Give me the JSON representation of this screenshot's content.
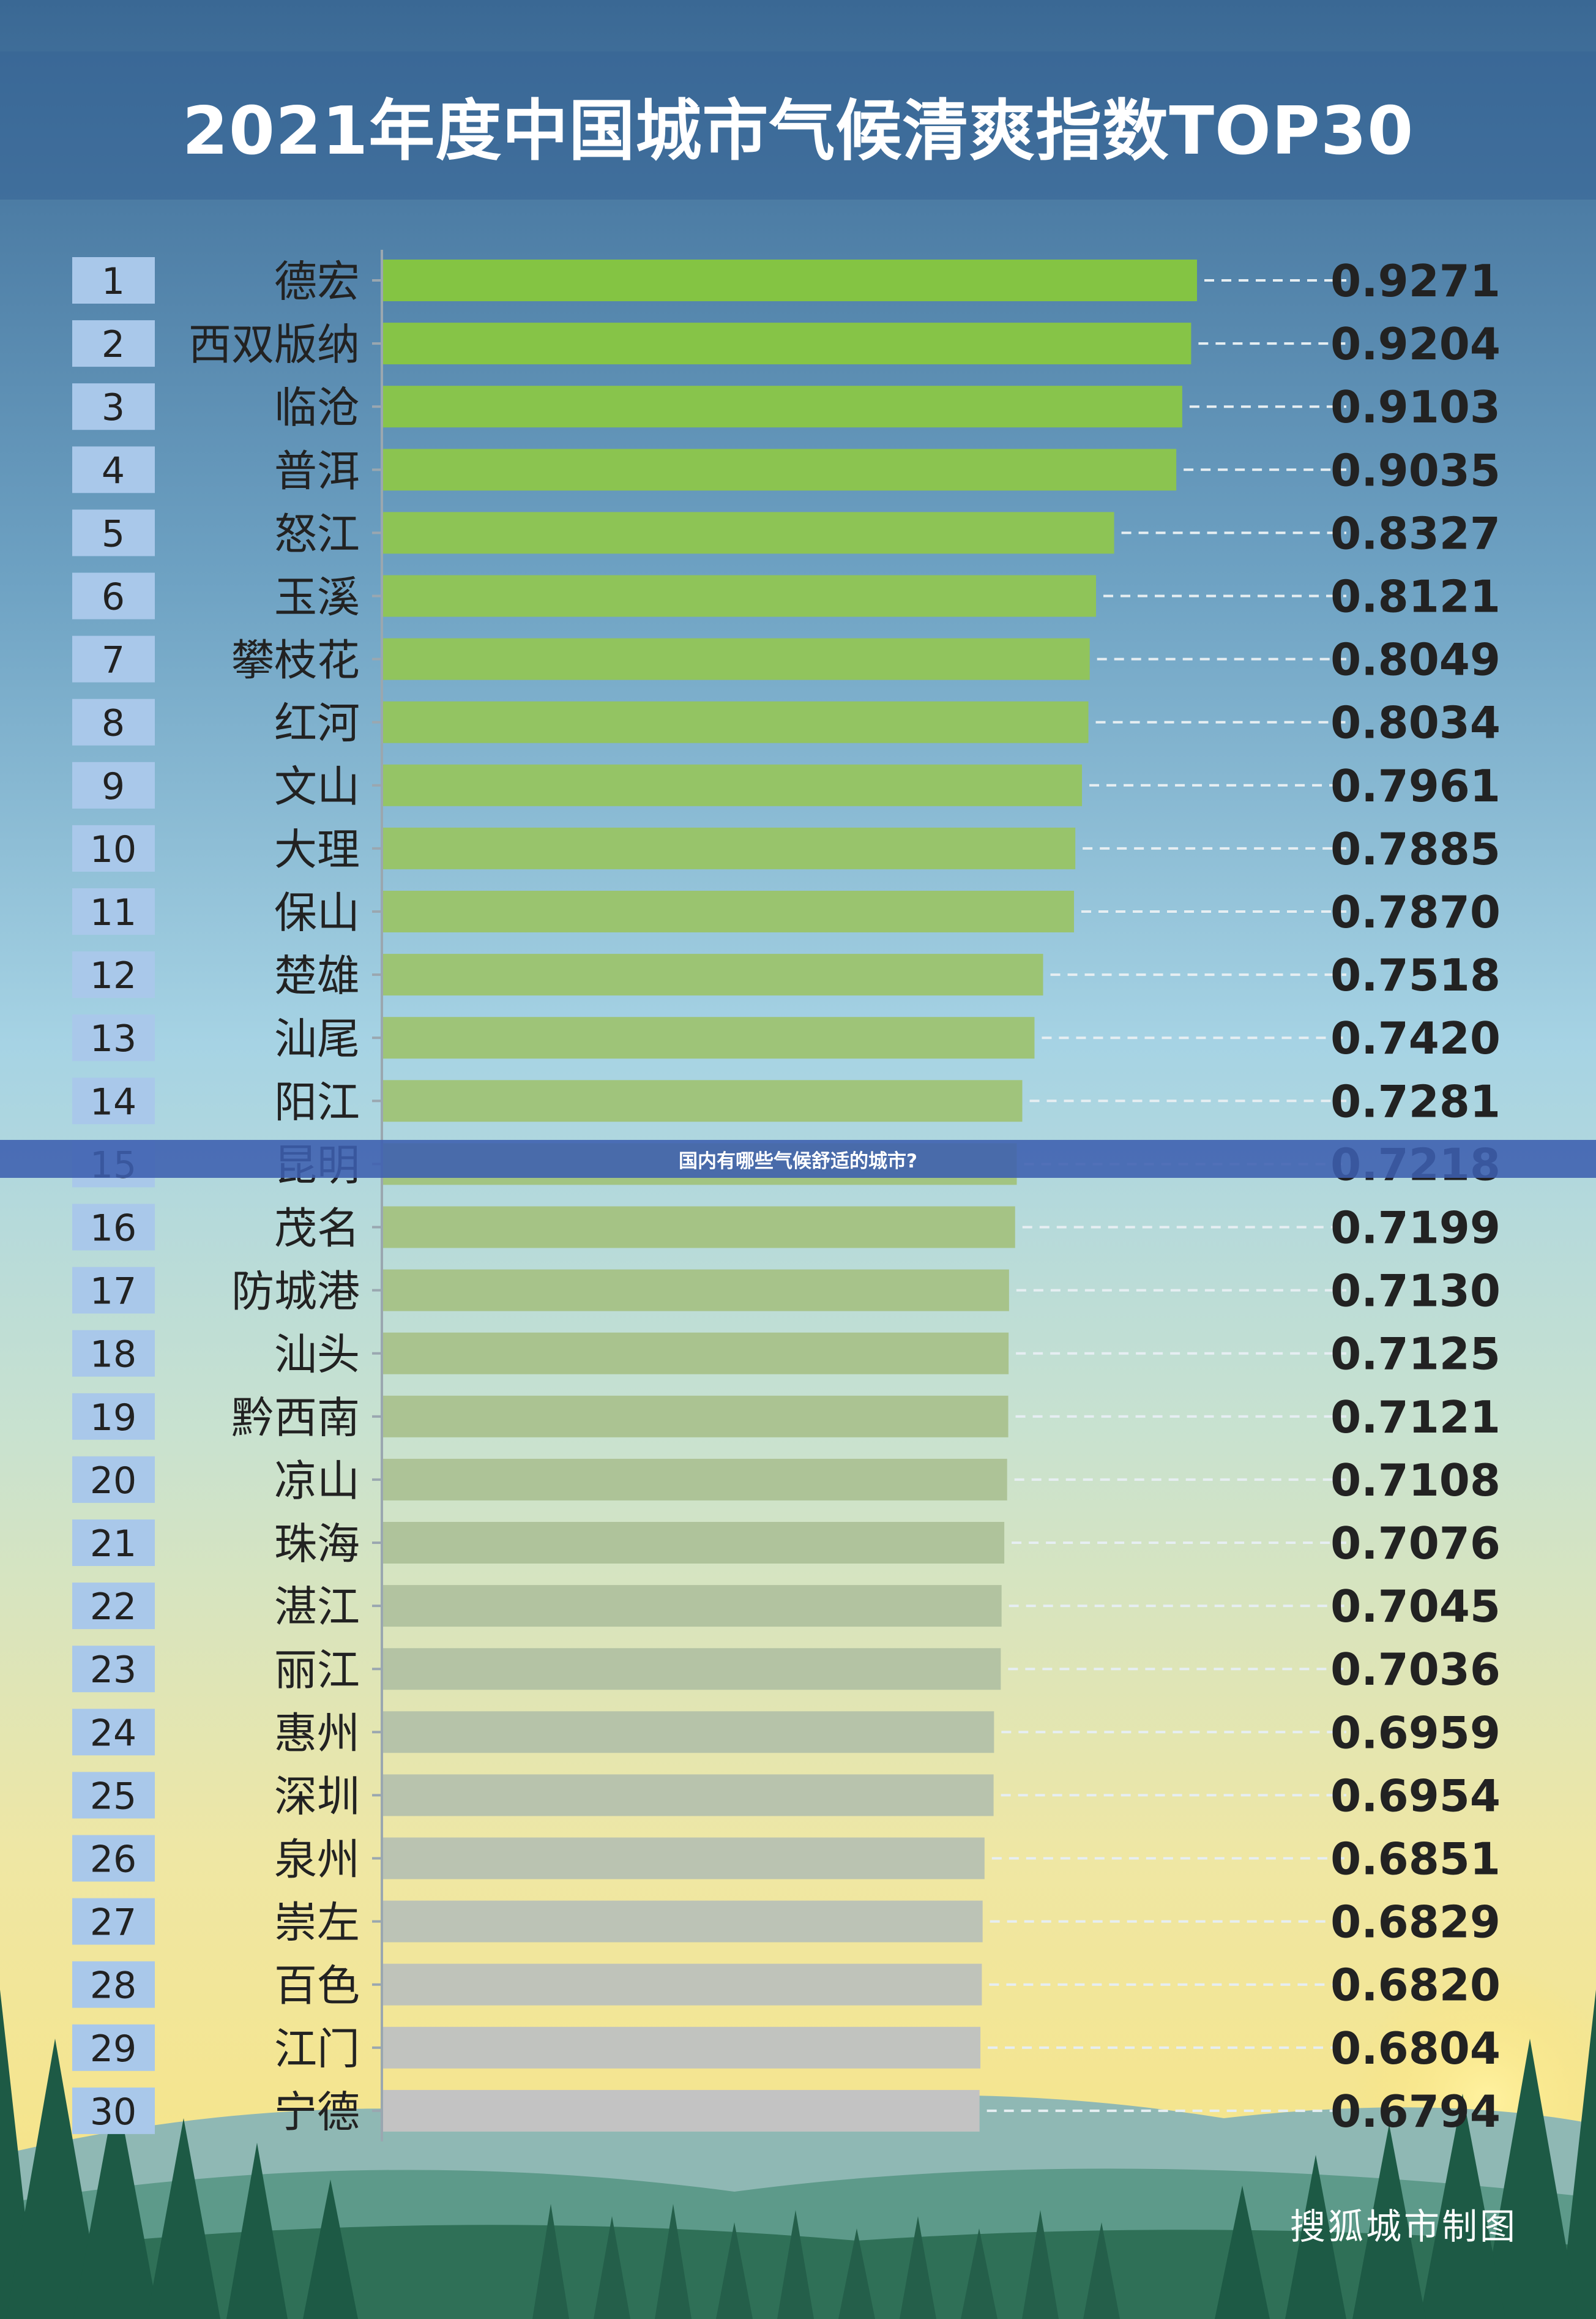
{
  "chart_data": {
    "type": "bar",
    "orientation": "horizontal",
    "title": "2021年度中国城市气候清爽指数TOP30",
    "ranks": [
      "1",
      "2",
      "3",
      "4",
      "5",
      "6",
      "7",
      "8",
      "9",
      "10",
      "11",
      "12",
      "13",
      "14",
      "15",
      "16",
      "17",
      "18",
      "19",
      "20",
      "21",
      "22",
      "23",
      "24",
      "25",
      "26",
      "27",
      "28",
      "29",
      "30"
    ],
    "categories": [
      "德宏",
      "西双版纳",
      "临沧",
      "普洱",
      "怒江",
      "玉溪",
      "攀枝花",
      "红河",
      "文山",
      "大理",
      "保山",
      "楚雄",
      "汕尾",
      "阳江",
      "昆明",
      "茂名",
      "防城港",
      "汕头",
      "黔西南",
      "凉山",
      "珠海",
      "湛江",
      "丽江",
      "惠州",
      "深圳",
      "泉州",
      "崇左",
      "百色",
      "江门",
      "宁德"
    ],
    "values": [
      0.9271,
      0.9204,
      0.9103,
      0.9035,
      0.8327,
      0.8121,
      0.8049,
      0.8034,
      0.7961,
      0.7885,
      0.787,
      0.7518,
      0.742,
      0.7281,
      0.7218,
      0.7199,
      0.713,
      0.7125,
      0.7121,
      0.7108,
      0.7076,
      0.7045,
      0.7036,
      0.6959,
      0.6954,
      0.6851,
      0.6829,
      0.682,
      0.6804,
      0.6794
    ],
    "value_labels": [
      "0.9271",
      "0.9204",
      "0.9103",
      "0.9035",
      "0.8327",
      "0.8121",
      "0.8049",
      "0.8034",
      "0.7961",
      "0.7885",
      "0.7870",
      "0.7518",
      "0.7420",
      "0.7281",
      "0.7218",
      "0.7199",
      "0.7130",
      "0.7125",
      "0.7121",
      "0.7108",
      "0.7076",
      "0.7045",
      "0.7036",
      "0.6959",
      "0.6954",
      "0.6851",
      "0.6829",
      "0.6820",
      "0.6804",
      "0.6794"
    ],
    "bar_color_top": "#84c443",
    "bar_color_bottom": "#c3c3c3",
    "grid": false,
    "legend": "none"
  },
  "overlay_caption": "国内有哪些气候舒适的城市?",
  "credit": "搜狐城市制图",
  "colors": {
    "sky_top": "#3c6b96",
    "sky_mid": "#9ccbe0",
    "horizon": "#f7e58c",
    "rank_box": "#a9c8ea",
    "text_dark": "#222222",
    "forest": "#1d5a45"
  }
}
